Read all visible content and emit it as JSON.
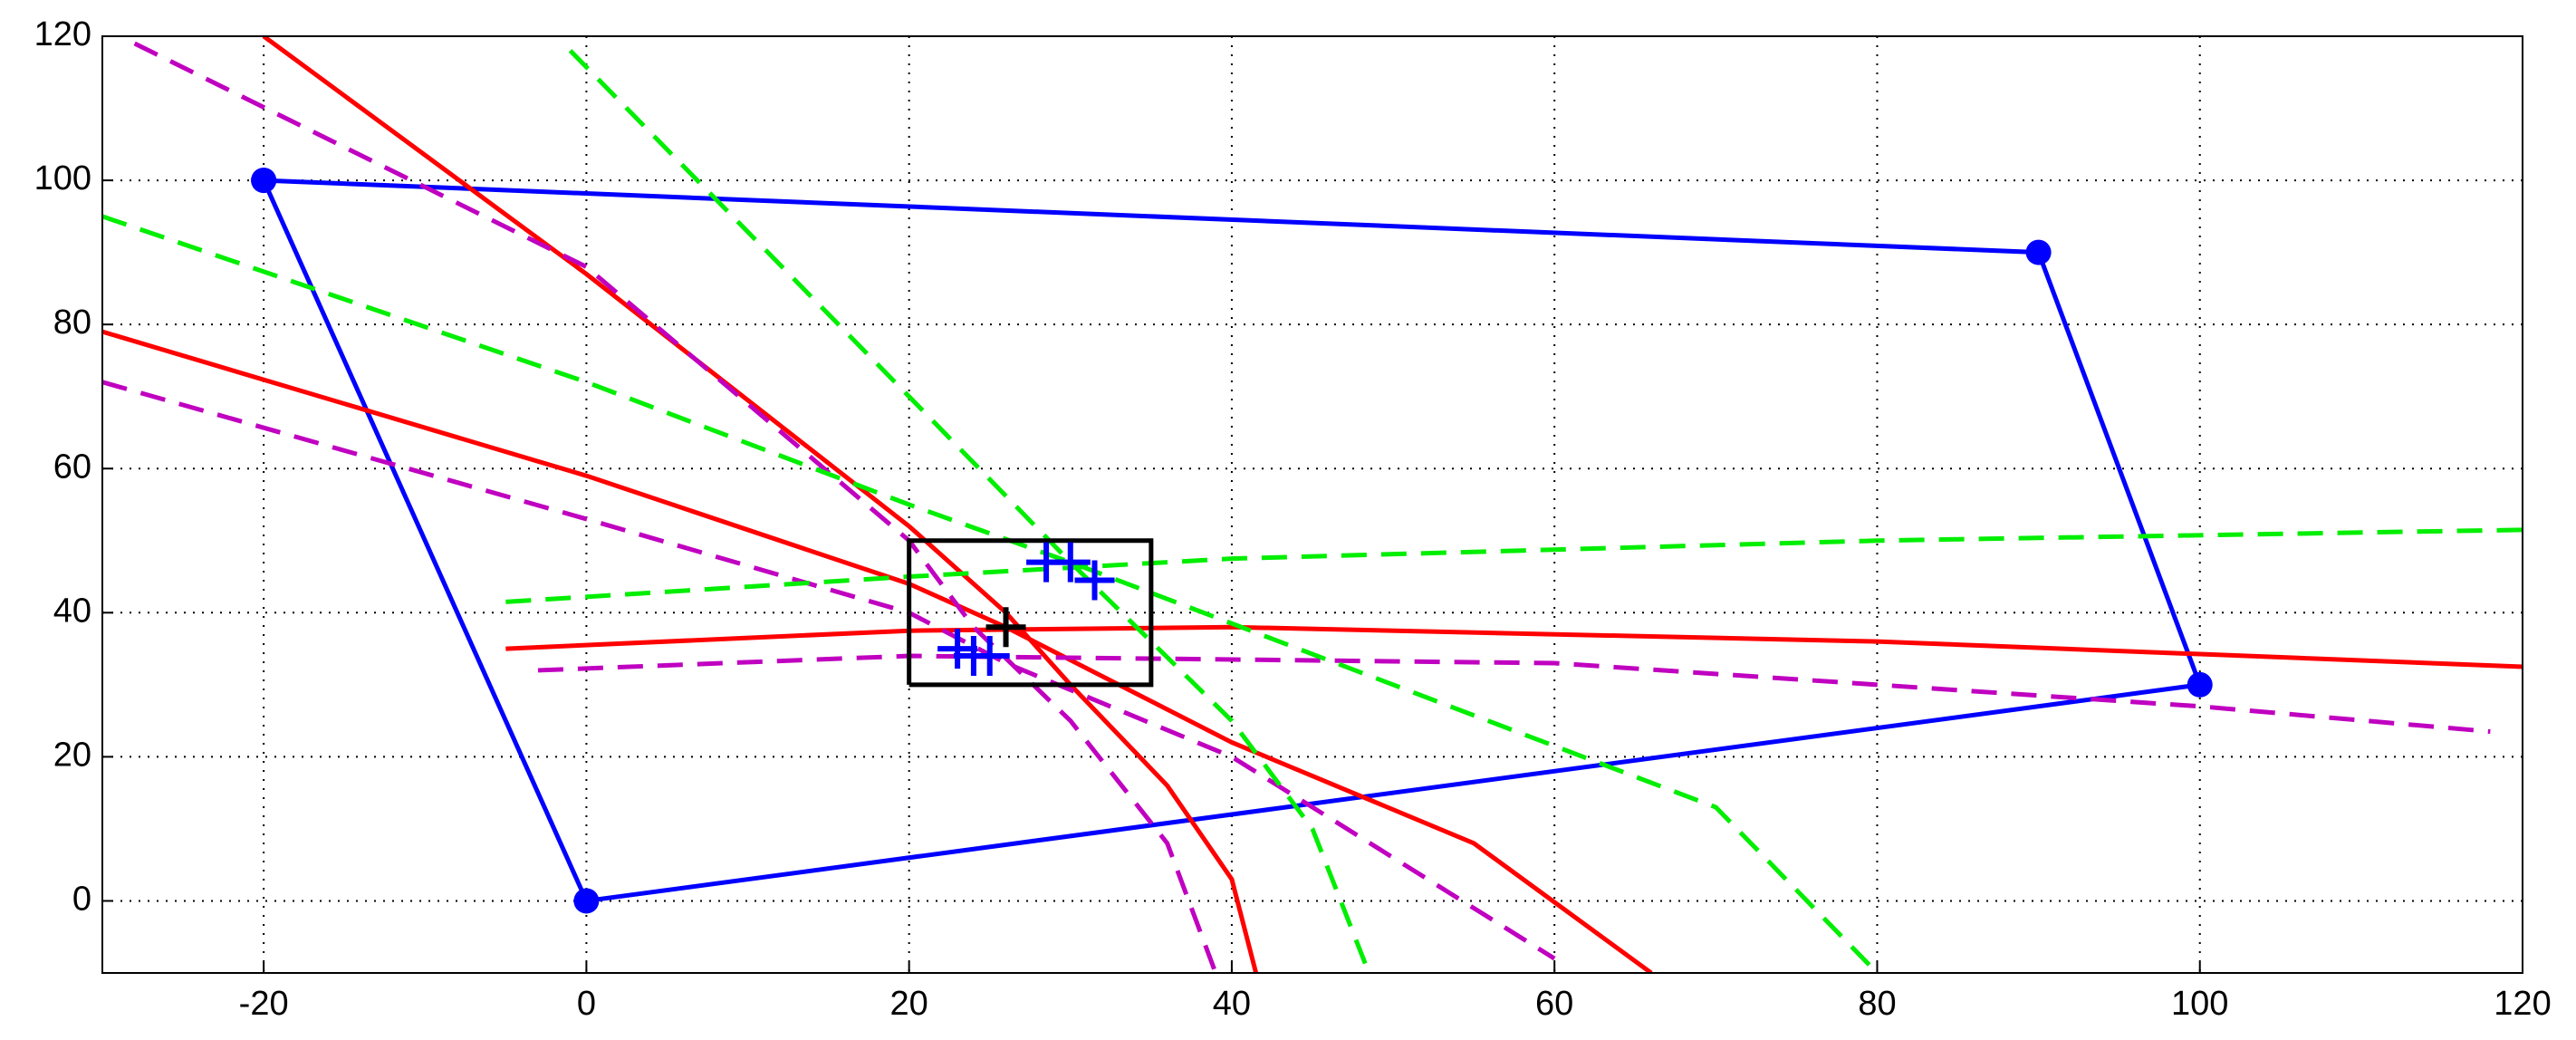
{
  "chart_data": {
    "type": "line",
    "xlim": [
      -30,
      120
    ],
    "ylim": [
      -10,
      120
    ],
    "xticks": [
      -20,
      0,
      20,
      40,
      60,
      80,
      100,
      120
    ],
    "yticks": [
      0,
      20,
      40,
      60,
      80,
      100,
      120
    ],
    "grid": true,
    "series": [
      {
        "color": "#0000ff",
        "linestyle": "solid",
        "marker": "dot",
        "x": [
          -20,
          90,
          100,
          0,
          -20
        ],
        "values": [
          100,
          90,
          30,
          0,
          100
        ]
      },
      {
        "color": "#ff0000",
        "linestyle": "solid",
        "marker": "none",
        "x": [
          -20,
          0,
          20,
          26,
          30,
          36,
          40,
          41.5
        ],
        "values": [
          120,
          87,
          52,
          40,
          30,
          16,
          3,
          -10
        ]
      },
      {
        "color": "#ff0000",
        "linestyle": "solid",
        "marker": "none",
        "x": [
          -30,
          0,
          20,
          26,
          40,
          55,
          66
        ],
        "values": [
          79,
          59,
          44,
          38,
          22,
          8,
          -10
        ]
      },
      {
        "color": "#ff0000",
        "linestyle": "solid",
        "marker": "none",
        "x": [
          -5,
          20,
          40,
          80,
          120
        ],
        "values": [
          35,
          37.5,
          38,
          36,
          32.5
        ]
      },
      {
        "color": "#c000c0",
        "linestyle": "dashed",
        "marker": "none",
        "x": [
          -28,
          0,
          20,
          24,
          30,
          36,
          39
        ],
        "values": [
          119,
          88,
          50,
          38,
          25,
          8,
          -10
        ]
      },
      {
        "color": "#c000c0",
        "linestyle": "dashed",
        "marker": "none",
        "x": [
          -30,
          0,
          20,
          26,
          40,
          60
        ],
        "values": [
          72,
          53,
          40,
          33,
          20,
          -8
        ]
      },
      {
        "color": "#c000c0",
        "linestyle": "dashed",
        "marker": "none",
        "x": [
          -3,
          20,
          60,
          100,
          118
        ],
        "values": [
          32,
          34,
          33,
          27,
          23.5
        ]
      },
      {
        "color": "#00ee00",
        "linestyle": "dashed",
        "marker": "none",
        "x": [
          -1,
          20,
          30,
          40,
          45,
          48.5
        ],
        "values": [
          118,
          70,
          47,
          25,
          10,
          -10
        ]
      },
      {
        "color": "#00ee00",
        "linestyle": "dashed",
        "marker": "none",
        "x": [
          -30,
          0,
          20,
          30,
          50,
          70,
          80
        ],
        "values": [
          95,
          72,
          55,
          47,
          30,
          13,
          -10
        ]
      },
      {
        "color": "#00ee00",
        "linestyle": "dashed",
        "marker": "none",
        "x": [
          -5,
          20,
          40,
          80,
          120
        ],
        "values": [
          41.5,
          45,
          47.5,
          50,
          51.5
        ]
      },
      {
        "color": "#000000",
        "linestyle": "solid",
        "marker": "none",
        "x": [
          20,
          35,
          35,
          20,
          20
        ],
        "values": [
          30,
          30,
          50,
          50,
          30
        ]
      },
      {
        "color": "#0000ff",
        "linestyle": "none",
        "marker": "plus",
        "x": [
          28.5,
          30,
          31.5,
          23,
          24,
          25
        ],
        "values": [
          47,
          47,
          44.5,
          35,
          34,
          34
        ]
      },
      {
        "color": "#000000",
        "linestyle": "none",
        "marker": "plus",
        "x": [
          26
        ],
        "values": [
          38
        ]
      }
    ]
  }
}
